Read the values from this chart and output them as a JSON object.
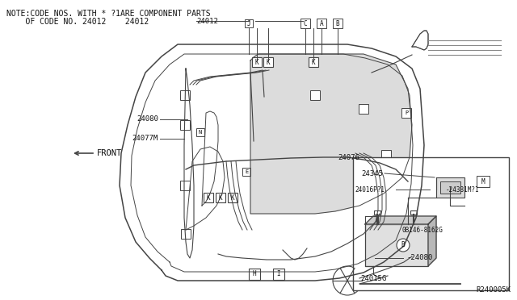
{
  "bg_color": "#e8e8e8",
  "fig_bg": "#d0d0d0",
  "note_line1": "NOTE:CODE NOS. WITH * ?1ARE COMPONENT PARTS",
  "note_line2": "    OF CODE NO. 24012    24012",
  "front_label": "FRONT",
  "ref_code": "R240005K",
  "line_color": "#444444",
  "text_color": "#111111",
  "gray_line": "#888888",
  "font_size_note": 7.0,
  "font_size_label": 6.5,
  "font_size_front": 7.5,
  "font_size_ref": 6.5,
  "font_size_small": 5.5
}
